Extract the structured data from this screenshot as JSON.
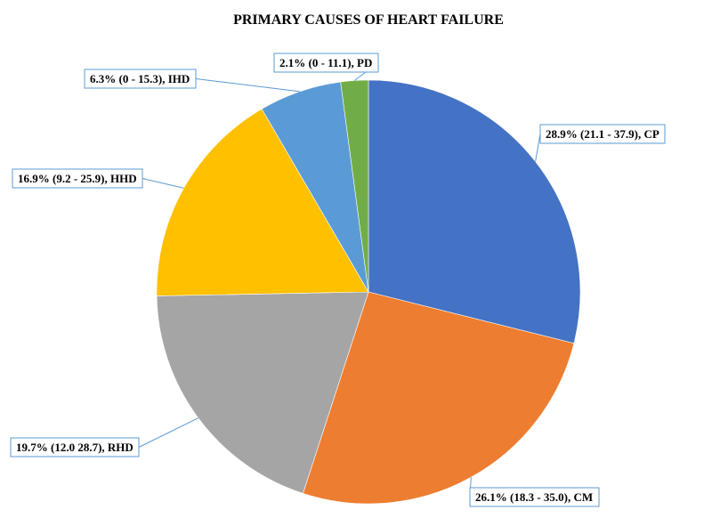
{
  "chart_data": {
    "type": "pie",
    "title": "PRIMARY CAUSES OF HEART FAILURE",
    "start_angle_deg": 0,
    "direction": "clockwise",
    "slices": [
      {
        "name": "CP",
        "value": 28.9,
        "label": "28.9% (21.1 - 37.9), CP",
        "color": "#4472c4"
      },
      {
        "name": "CM",
        "value": 26.1,
        "label": "26.1% (18.3 - 35.0), CM",
        "color": "#ed7d31"
      },
      {
        "name": "RHD",
        "value": 19.7,
        "label": "19.7% (12.0 28.7), RHD",
        "color": "#a5a5a5"
      },
      {
        "name": "HHD",
        "value": 16.9,
        "label": "16.9% (9.2 - 25.9), HHD",
        "color": "#ffc000"
      },
      {
        "name": "IHD",
        "value": 6.3,
        "label": "6.3% (0 - 15.3), IHD",
        "color": "#5b9bd5"
      },
      {
        "name": "PD",
        "value": 2.1,
        "label": "2.1% (0 - 11.1), PD",
        "color": "#70ad47"
      }
    ],
    "label_style": "callout-boxes-with-leader-lines",
    "legend": "none"
  }
}
